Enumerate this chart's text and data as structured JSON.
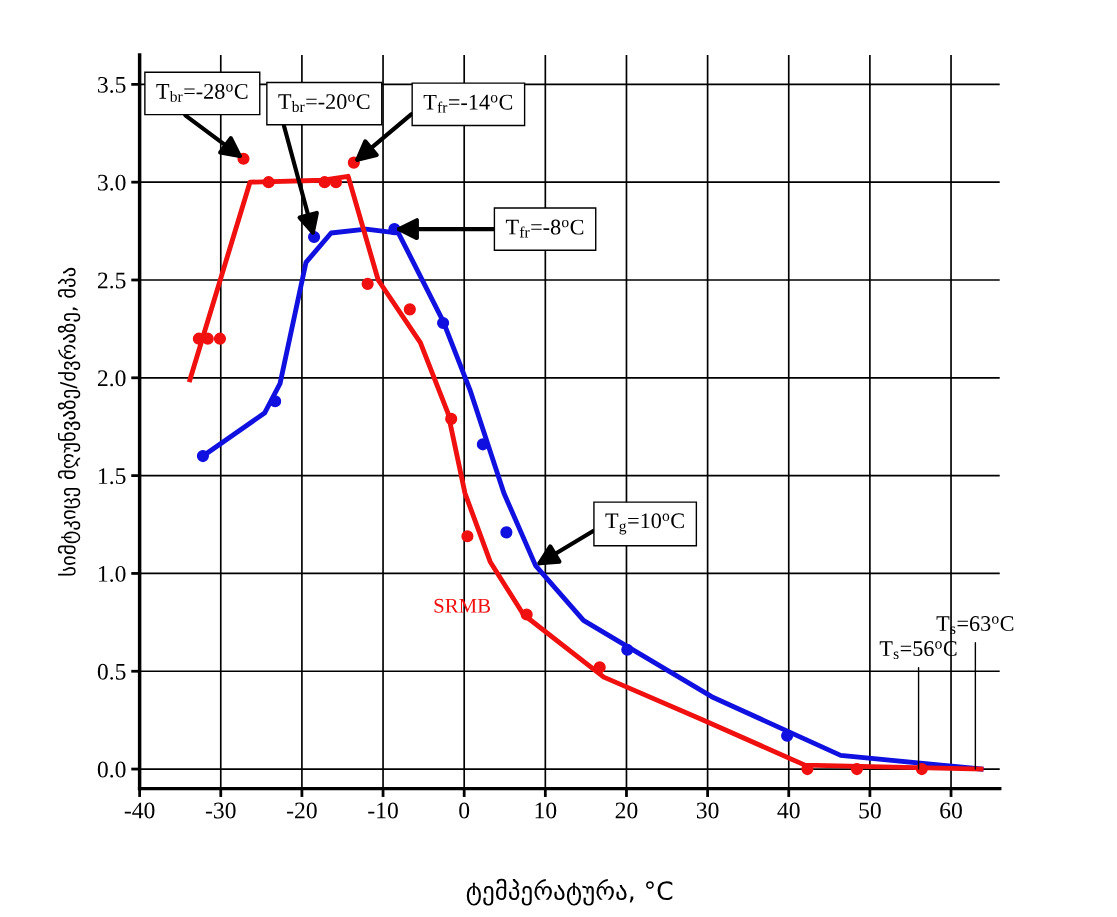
{
  "chart_data": {
    "type": "line",
    "xlabel": "ტემპერატურა, °C",
    "ylabel": "სიმტკიცე მღუნვაზე/ძვრაზე, მპა",
    "xlim": [
      -40,
      66
    ],
    "xticks": [
      -40,
      -30,
      -20,
      -10,
      0,
      10,
      20,
      30,
      40,
      50,
      60
    ],
    "ylim": [
      -0.1,
      3.65
    ],
    "yticks": [
      {
        "value": 0,
        "label": "0.0"
      },
      0.5,
      {
        "value": 1,
        "label": "1.0"
      },
      1.5,
      {
        "value": 2,
        "label": "2.0"
      },
      2.5,
      {
        "value": 3,
        "label": "3.0"
      },
      3.5
    ],
    "grid": true,
    "legend": false,
    "line_style": "solid",
    "series": [
      {
        "color": "#1010e0",
        "marker": "none",
        "x": [
          -32.2,
          -24.6,
          -22.7,
          -19.5,
          -16.4,
          -12.1,
          -8.1,
          -2.6,
          0.7,
          4.9,
          8.8,
          14.7,
          30.5,
          46.4,
          63.7
        ],
        "values": [
          1.6,
          1.82,
          1.97,
          2.59,
          2.74,
          2.76,
          2.74,
          2.29,
          1.94,
          1.41,
          1.04,
          0.76,
          0.37,
          0.07,
          0.0
        ]
      },
      {
        "type": "scatter",
        "color": "#1010e0",
        "marker": "circle",
        "x": [
          -32.2,
          -23.3,
          -18.5,
          -8.6,
          -2.6,
          2.3,
          5.2,
          20.1,
          39.8
        ],
        "values": [
          1.6,
          1.88,
          2.72,
          2.76,
          2.28,
          1.66,
          1.21,
          0.61,
          0.17
        ]
      },
      {
        "name": "SRMB",
        "color": "#f01010",
        "marker": "none",
        "x": [
          -33.8,
          -26.4,
          -17.4,
          -14.3,
          -10.6,
          -5.4,
          -2.0,
          0.1,
          3.2,
          7.3,
          17.2,
          29.5,
          42.0,
          63.7
        ],
        "values": [
          1.99,
          3.0,
          3.01,
          3.03,
          2.5,
          2.18,
          1.82,
          1.41,
          1.06,
          0.79,
          0.47,
          0.25,
          0.02,
          0.0
        ]
      },
      {
        "type": "scatter",
        "color": "#f01010",
        "marker": "circle",
        "x": [
          -32.7,
          -31.6,
          -30.1,
          -27.2,
          -24.1,
          -17.2,
          -15.8,
          -13.6,
          -11.9,
          -6.7,
          -1.6,
          0.4,
          7.7,
          16.7,
          42.3,
          48.4,
          56.4
        ],
        "values": [
          2.2,
          2.2,
          2.2,
          3.12,
          3.0,
          3.0,
          3.0,
          3.1,
          2.48,
          2.35,
          1.79,
          1.19,
          0.79,
          0.52,
          0.0,
          0.0,
          0.0
        ]
      }
    ],
    "annotations": [
      {
        "text": "T$_{br}$=-28$^{o}$C",
        "x": -27.2,
        "y": 3.12
      },
      {
        "text": "T$_{fr}$=-14$^{o}$C",
        "x": -13.6,
        "y": 3.1
      },
      {
        "text": "T$_{fr}$=-8$^{o}$C",
        "x": -8.6,
        "y": 2.76
      },
      {
        "text": "T$_{br}$=-20$^{o}$C",
        "x": -18.5,
        "y": 2.72
      },
      {
        "text": "T$_{g}$=10$^{o}$C",
        "x": 8.8,
        "y": 1.04
      },
      {
        "text": "T$_{s}$=56$^{o}$C",
        "x": 56,
        "y": 0.0
      },
      {
        "text": "T$_{s}$=63$^{o}$C",
        "x": 63,
        "y": 0.0
      }
    ]
  }
}
